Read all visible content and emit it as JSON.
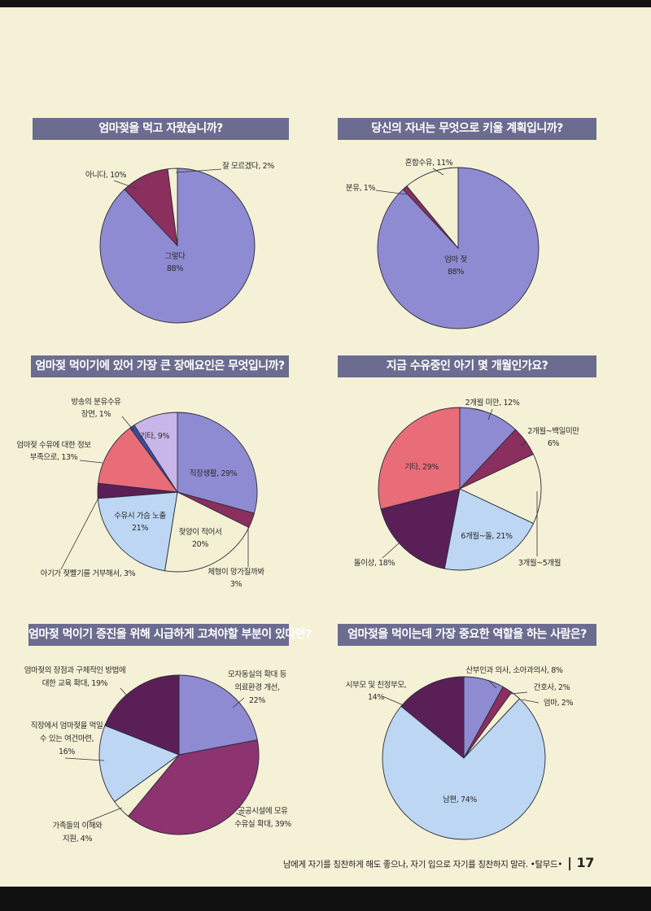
{
  "colors": {
    "title_bar": "#6b6c8f",
    "lavender": "#8f8bd2",
    "plum": "#8a2f5e",
    "cream": "#f3f0d3",
    "light_blue": "#bdd6f3",
    "dark_purple": "#5b1f57",
    "coral": "#e86d79",
    "lilac": "#c9b6e8",
    "blue": "#3a4ea0",
    "magenta_purple": "#8c3370"
  },
  "chart_data": [
    {
      "type": "pie",
      "title": "엄마젖을 먹고 자랐습니까?",
      "slices": [
        {
          "label_lines": [
            "그렇다",
            "88%"
          ],
          "value": 88,
          "color": "#8f8bd2"
        },
        {
          "label_lines": [
            "아니다, 10%"
          ],
          "value": 10,
          "color": "#8a2f5e"
        },
        {
          "label_lines": [
            "잘 모르겠다, 2%"
          ],
          "value": 2,
          "color": "#f3f0d3"
        }
      ]
    },
    {
      "type": "pie",
      "title": "당신의 자녀는 무엇으로 키울 계획입니까?",
      "slices": [
        {
          "label_lines": [
            "엄마 젖",
            "88%"
          ],
          "value": 88,
          "color": "#8f8bd2"
        },
        {
          "label_lines": [
            "분유, 1%"
          ],
          "value": 1,
          "color": "#8a2f5e"
        },
        {
          "label_lines": [
            "혼합수유, 11%"
          ],
          "value": 11,
          "color": "#f3f0d3"
        }
      ]
    },
    {
      "type": "pie",
      "title": "엄마젖 먹이기에 있어 가장 큰 장애요인은 무엇입니까?",
      "slices": [
        {
          "label_lines": [
            "직장생활, 29%"
          ],
          "value": 29,
          "color": "#8f8bd2"
        },
        {
          "label_lines": [
            "체형이 망가질까봐",
            "3%"
          ],
          "value": 3,
          "color": "#8a2f5e"
        },
        {
          "label_lines": [
            "젖양이 적어서",
            "20%"
          ],
          "value": 20,
          "color": "#f3f0d3"
        },
        {
          "label_lines": [
            "수유시 가슴 노출",
            "21%"
          ],
          "value": 21,
          "color": "#bdd6f3"
        },
        {
          "label_lines": [
            "아기가 젖빨기를 거부해서, 3%"
          ],
          "value": 3,
          "color": "#5b1f57"
        },
        {
          "label_lines": [
            "엄마젖 수유에 대한 정보",
            "부족으로, 13%"
          ],
          "value": 13,
          "color": "#e86d79"
        },
        {
          "label_lines": [
            "방송의 분유수유",
            "장면, 1%"
          ],
          "value": 1,
          "color": "#3a4ea0"
        },
        {
          "label_lines": [
            "기타, 9%"
          ],
          "value": 9,
          "color": "#c9b6e8"
        }
      ]
    },
    {
      "type": "pie",
      "title": "지금 수유중인 아기 몇 개월인가요?",
      "slices": [
        {
          "label_lines": [
            "2개월 미만, 12%"
          ],
          "value": 12,
          "color": "#8f8bd2"
        },
        {
          "label_lines": [
            "2개월~백일미만",
            "6%"
          ],
          "value": 6,
          "color": "#8a2f5e"
        },
        {
          "label_lines": [
            "3개월~5개월"
          ],
          "value": 14,
          "color": "#f3f0d3"
        },
        {
          "label_lines": [
            "6개월~돌, 21%"
          ],
          "value": 21,
          "color": "#bdd6f3"
        },
        {
          "label_lines": [
            "돌이상, 18%"
          ],
          "value": 18,
          "color": "#5b1f57"
        },
        {
          "label_lines": [
            "기타, 29%"
          ],
          "value": 29,
          "color": "#e86d79"
        }
      ]
    },
    {
      "type": "pie",
      "title": "엄마젖 먹이기 증진을 위해 시급하게 고쳐야할 부분이 있다면?",
      "slices": [
        {
          "label_lines": [
            "모자동실의 확대 등",
            "의료환경 개선,",
            "22%"
          ],
          "value": 22,
          "color": "#8f8bd2"
        },
        {
          "label_lines": [
            "공공시설에 모유",
            "수유실 확대, 39%"
          ],
          "value": 39,
          "color": "#8c3370"
        },
        {
          "label_lines": [
            "가족들의 이해와",
            "지원, 4%"
          ],
          "value": 4,
          "color": "#f3f0d3"
        },
        {
          "label_lines": [
            "직장에서 엄마젖을 먹일",
            "수 있는 여건마련,",
            "16%"
          ],
          "value": 16,
          "color": "#bdd6f3"
        },
        {
          "label_lines": [
            "엄마젖의 장점과 구체적인 방법에",
            "대한 교육 확대, 19%"
          ],
          "value": 19,
          "color": "#5b1f57"
        }
      ]
    },
    {
      "type": "pie",
      "title": "엄마젖을 먹이는데 가장 중요한 역할을 하는 사람은?",
      "slices": [
        {
          "label_lines": [
            "산부인과 의사, 소아과의사, 8%"
          ],
          "value": 8,
          "color": "#8f8bd2"
        },
        {
          "label_lines": [
            "간호사, 2%"
          ],
          "value": 2,
          "color": "#8a2f5e"
        },
        {
          "label_lines": [
            "엄마, 2%"
          ],
          "value": 2,
          "color": "#f3f0d3"
        },
        {
          "label_lines": [
            "남편, 74%"
          ],
          "value": 74,
          "color": "#bdd6f3"
        },
        {
          "label_lines": [
            "시부모 및 친정부모,",
            "14%"
          ],
          "value": 14,
          "color": "#5b1f57"
        }
      ]
    }
  ],
  "footer": {
    "quote": "남에게 자기를 칭찬하게 해도 좋으나, 자기 입으로 자기를 칭찬하지 말라. •탈무드•",
    "separator": "|",
    "page_number": "17"
  }
}
